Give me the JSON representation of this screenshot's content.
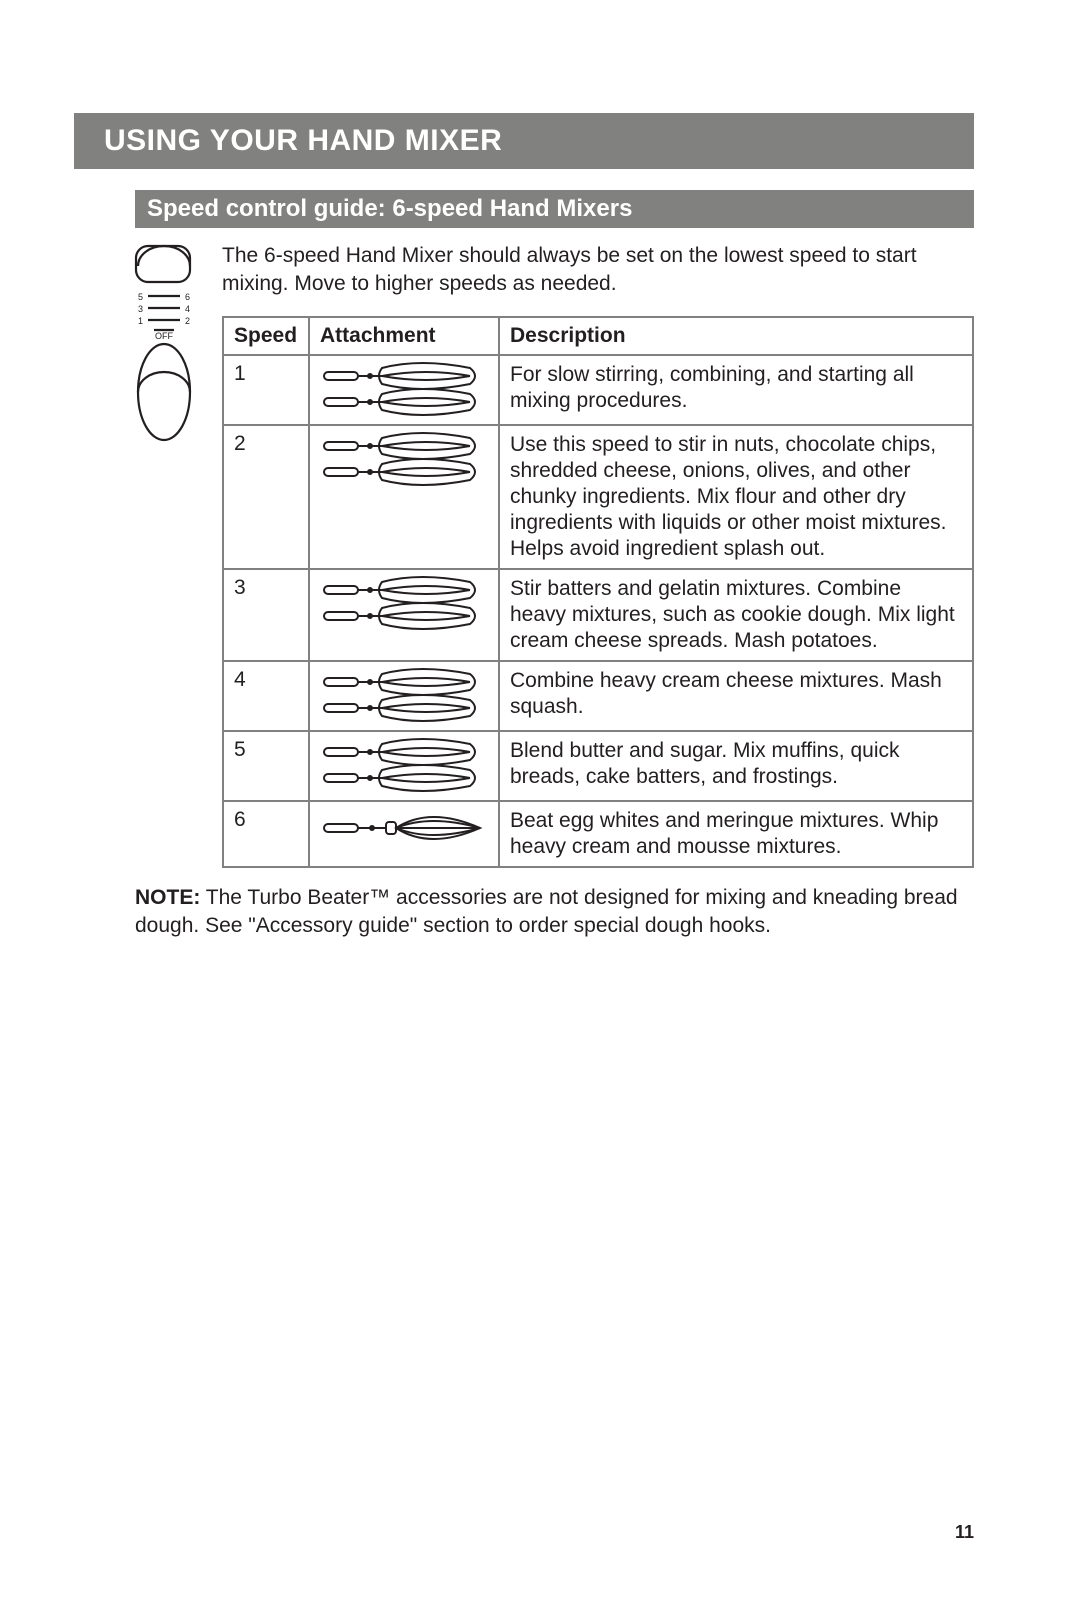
{
  "colors": {
    "band_bg": "#81827f",
    "band_text": "#ffffff",
    "border": "#81827f",
    "text": "#231f20"
  },
  "header": {
    "title": "USING YOUR HAND MIXER"
  },
  "subheader": {
    "title": "Speed control guide: 6-speed Hand Mixers"
  },
  "intro": "The 6-speed Hand Mixer should always be set on the lowest speed to start mixing. Move to higher speeds as needed.",
  "table": {
    "columns": {
      "speed": "Speed",
      "attachment": "Attachment",
      "description": "Description"
    },
    "rows": [
      {
        "speed": "1",
        "attachment": "double-beater",
        "description": "For slow stirring, combining, and starting all mixing procedures."
      },
      {
        "speed": "2",
        "attachment": "double-beater",
        "description": "Use this speed to stir in nuts, chocolate chips, shredded cheese, onions, olives, and other chunky ingredients. Mix flour and other dry ingredients with liquids or other moist mixtures. Helps avoid ingredient splash out."
      },
      {
        "speed": "3",
        "attachment": "double-beater",
        "description": "Stir batters and gelatin mixtures. Combine heavy mixtures, such as cookie dough. Mix light cream cheese spreads. Mash potatoes."
      },
      {
        "speed": "4",
        "attachment": "double-beater",
        "description": "Combine heavy cream cheese mixtures. Mash squash."
      },
      {
        "speed": "5",
        "attachment": "double-beater",
        "description": "Blend butter and sugar. Mix muffins, quick breads, cake batters, and frostings."
      },
      {
        "speed": "6",
        "attachment": "whisk",
        "description": "Beat egg whites and meringue mixtures. Whip heavy cream and mousse mixtures."
      }
    ]
  },
  "note": {
    "label": "NOTE:",
    "text": " The Turbo Beater™ accessories are not designed for mixing and kneading bread dough. See \"Accessory guide\" section to order special dough hooks."
  },
  "dial": {
    "labels": [
      "1",
      "3",
      "5",
      "6",
      "4",
      "2"
    ],
    "off_label": "OFF"
  },
  "page_number": "11"
}
